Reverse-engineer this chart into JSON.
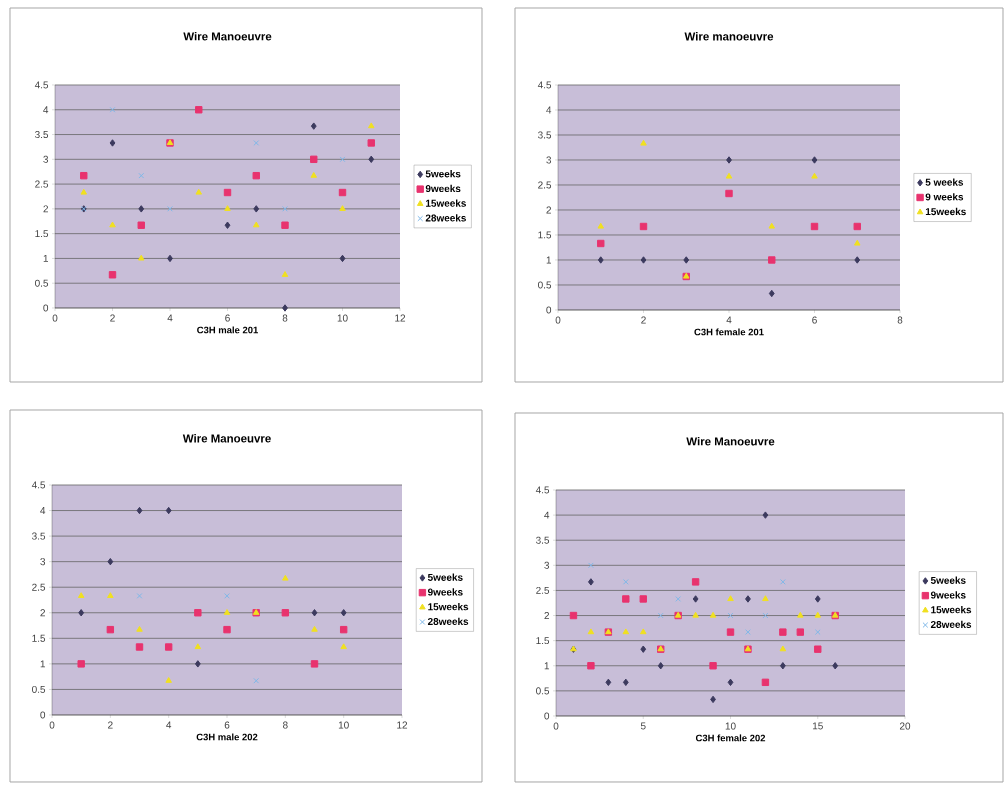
{
  "chart_data": [
    {
      "type": "scatter",
      "title": "Wire Manoeuvre",
      "xlabel": "C3H male 201",
      "x": [
        1,
        2,
        3,
        4,
        5,
        6,
        7,
        8,
        9,
        10,
        11
      ],
      "xlim": [
        0,
        12
      ],
      "xticks": [
        0,
        2,
        4,
        6,
        8,
        10,
        12
      ],
      "ylim": [
        0,
        4.5
      ],
      "yticks": [
        0,
        0.5,
        1,
        1.5,
        2,
        2.5,
        3,
        3.5,
        4,
        4.5
      ],
      "grid": "y",
      "legend": "right",
      "series": [
        {
          "name": "5weeks",
          "color": "#3c3a5e",
          "marker": "diamond",
          "values": [
            2,
            3.33,
            2,
            1,
            null,
            1.67,
            2,
            0,
            3.67,
            1,
            3
          ]
        },
        {
          "name": "9weeks",
          "color": "#e8336e",
          "marker": "square",
          "values": [
            2.67,
            0.67,
            1.67,
            3.33,
            4,
            2.33,
            2.67,
            1.67,
            3,
            2.33,
            3.33
          ]
        },
        {
          "name": "15weeks",
          "color": "#f0e020",
          "marker": "triangle",
          "values": [
            2.33,
            1.67,
            1,
            3.33,
            2.33,
            2,
            1.67,
            0.67,
            2.67,
            2,
            3.67
          ]
        },
        {
          "name": "28weeks",
          "color": "#80b8e8",
          "marker": "cross",
          "values": [
            2,
            4,
            2.67,
            2,
            null,
            null,
            3.33,
            2,
            null,
            3,
            null
          ]
        }
      ]
    },
    {
      "type": "scatter",
      "title": "Wire manoeuvre",
      "xlabel": "C3H female 201",
      "x": [
        1,
        2,
        3,
        4,
        5,
        6,
        7
      ],
      "xlim": [
        0,
        8
      ],
      "xticks": [
        0,
        2,
        4,
        6,
        8
      ],
      "ylim": [
        0,
        4.5
      ],
      "yticks": [
        0,
        0.5,
        1,
        1.5,
        2,
        2.5,
        3,
        3.5,
        4,
        4.5
      ],
      "grid": "y",
      "legend": "right",
      "series": [
        {
          "name": "5 weeks",
          "color": "#3c3a5e",
          "marker": "diamond",
          "values": [
            1,
            1,
            1,
            3,
            0.33,
            3,
            1
          ]
        },
        {
          "name": "9 weeks",
          "color": "#e8336e",
          "marker": "square",
          "values": [
            1.33,
            1.67,
            0.67,
            2.33,
            1,
            1.67,
            1.67
          ]
        },
        {
          "name": "15weeks",
          "color": "#f0e020",
          "marker": "triangle",
          "values": [
            1.67,
            3.33,
            0.67,
            2.67,
            1.67,
            2.67,
            1.33
          ]
        }
      ]
    },
    {
      "type": "scatter",
      "title": "Wire Manoeuvre",
      "xlabel": "C3H male 202",
      "x": [
        1,
        2,
        3,
        4,
        5,
        6,
        7,
        8,
        9,
        10
      ],
      "xlim": [
        0,
        12
      ],
      "xticks": [
        0,
        2,
        4,
        6,
        8,
        10,
        12
      ],
      "ylim": [
        0,
        4.5
      ],
      "yticks": [
        0,
        0.5,
        1,
        1.5,
        2,
        2.5,
        3,
        3.5,
        4,
        4.5
      ],
      "grid": "y",
      "legend": "right",
      "series": [
        {
          "name": "5weeks",
          "color": "#3c3a5e",
          "marker": "diamond",
          "values": [
            2,
            3,
            4,
            4,
            1,
            null,
            null,
            null,
            2,
            2
          ]
        },
        {
          "name": "9weeks",
          "color": "#e8336e",
          "marker": "square",
          "values": [
            1,
            1.67,
            1.33,
            1.33,
            2,
            1.67,
            2,
            2,
            1,
            1.67
          ]
        },
        {
          "name": "15weeks",
          "color": "#f0e020",
          "marker": "triangle",
          "values": [
            2.33,
            2.33,
            1.67,
            0.67,
            1.33,
            2,
            2,
            2.67,
            1.67,
            1.33
          ]
        },
        {
          "name": "28weeks",
          "color": "#80b8e8",
          "marker": "cross",
          "values": [
            null,
            null,
            2.33,
            null,
            null,
            2.33,
            0.67,
            null,
            null,
            null
          ]
        }
      ]
    },
    {
      "type": "scatter",
      "title": "Wire Manoeuvre",
      "xlabel": "C3H female 202",
      "x": [
        1,
        2,
        3,
        4,
        5,
        6,
        7,
        8,
        9,
        10,
        11,
        12,
        13,
        14,
        15,
        16
      ],
      "xlim": [
        0,
        20
      ],
      "xticks": [
        0,
        5,
        10,
        15,
        20
      ],
      "ylim": [
        0,
        4.5
      ],
      "yticks": [
        0,
        0.5,
        1,
        1.5,
        2,
        2.5,
        3,
        3.5,
        4,
        4.5
      ],
      "grid": "y",
      "legend": "right",
      "series": [
        {
          "name": "5weeks",
          "color": "#3c3a5e",
          "marker": "diamond",
          "values": [
            1.33,
            2.67,
            0.67,
            0.67,
            1.33,
            1,
            null,
            2.33,
            0.33,
            0.67,
            2.33,
            4,
            1,
            null,
            2.33,
            1
          ]
        },
        {
          "name": "9weeks",
          "color": "#e8336e",
          "marker": "square",
          "values": [
            2,
            1,
            1.67,
            2.33,
            2.33,
            1.33,
            2,
            2.67,
            1,
            1.67,
            1.33,
            0.67,
            1.67,
            1.67,
            1.33,
            2
          ]
        },
        {
          "name": "15weeks",
          "color": "#f0e020",
          "marker": "triangle",
          "values": [
            1.33,
            1.67,
            1.67,
            1.67,
            1.67,
            1.33,
            2,
            2,
            2,
            2.33,
            1.33,
            2.33,
            1.33,
            2,
            2,
            2
          ]
        },
        {
          "name": "28weeks",
          "color": "#80b8e8",
          "marker": "cross",
          "values": [
            null,
            3,
            null,
            2.67,
            null,
            2,
            2.33,
            null,
            null,
            2,
            1.67,
            2,
            2.67,
            null,
            1.67,
            null
          ]
        }
      ]
    }
  ]
}
